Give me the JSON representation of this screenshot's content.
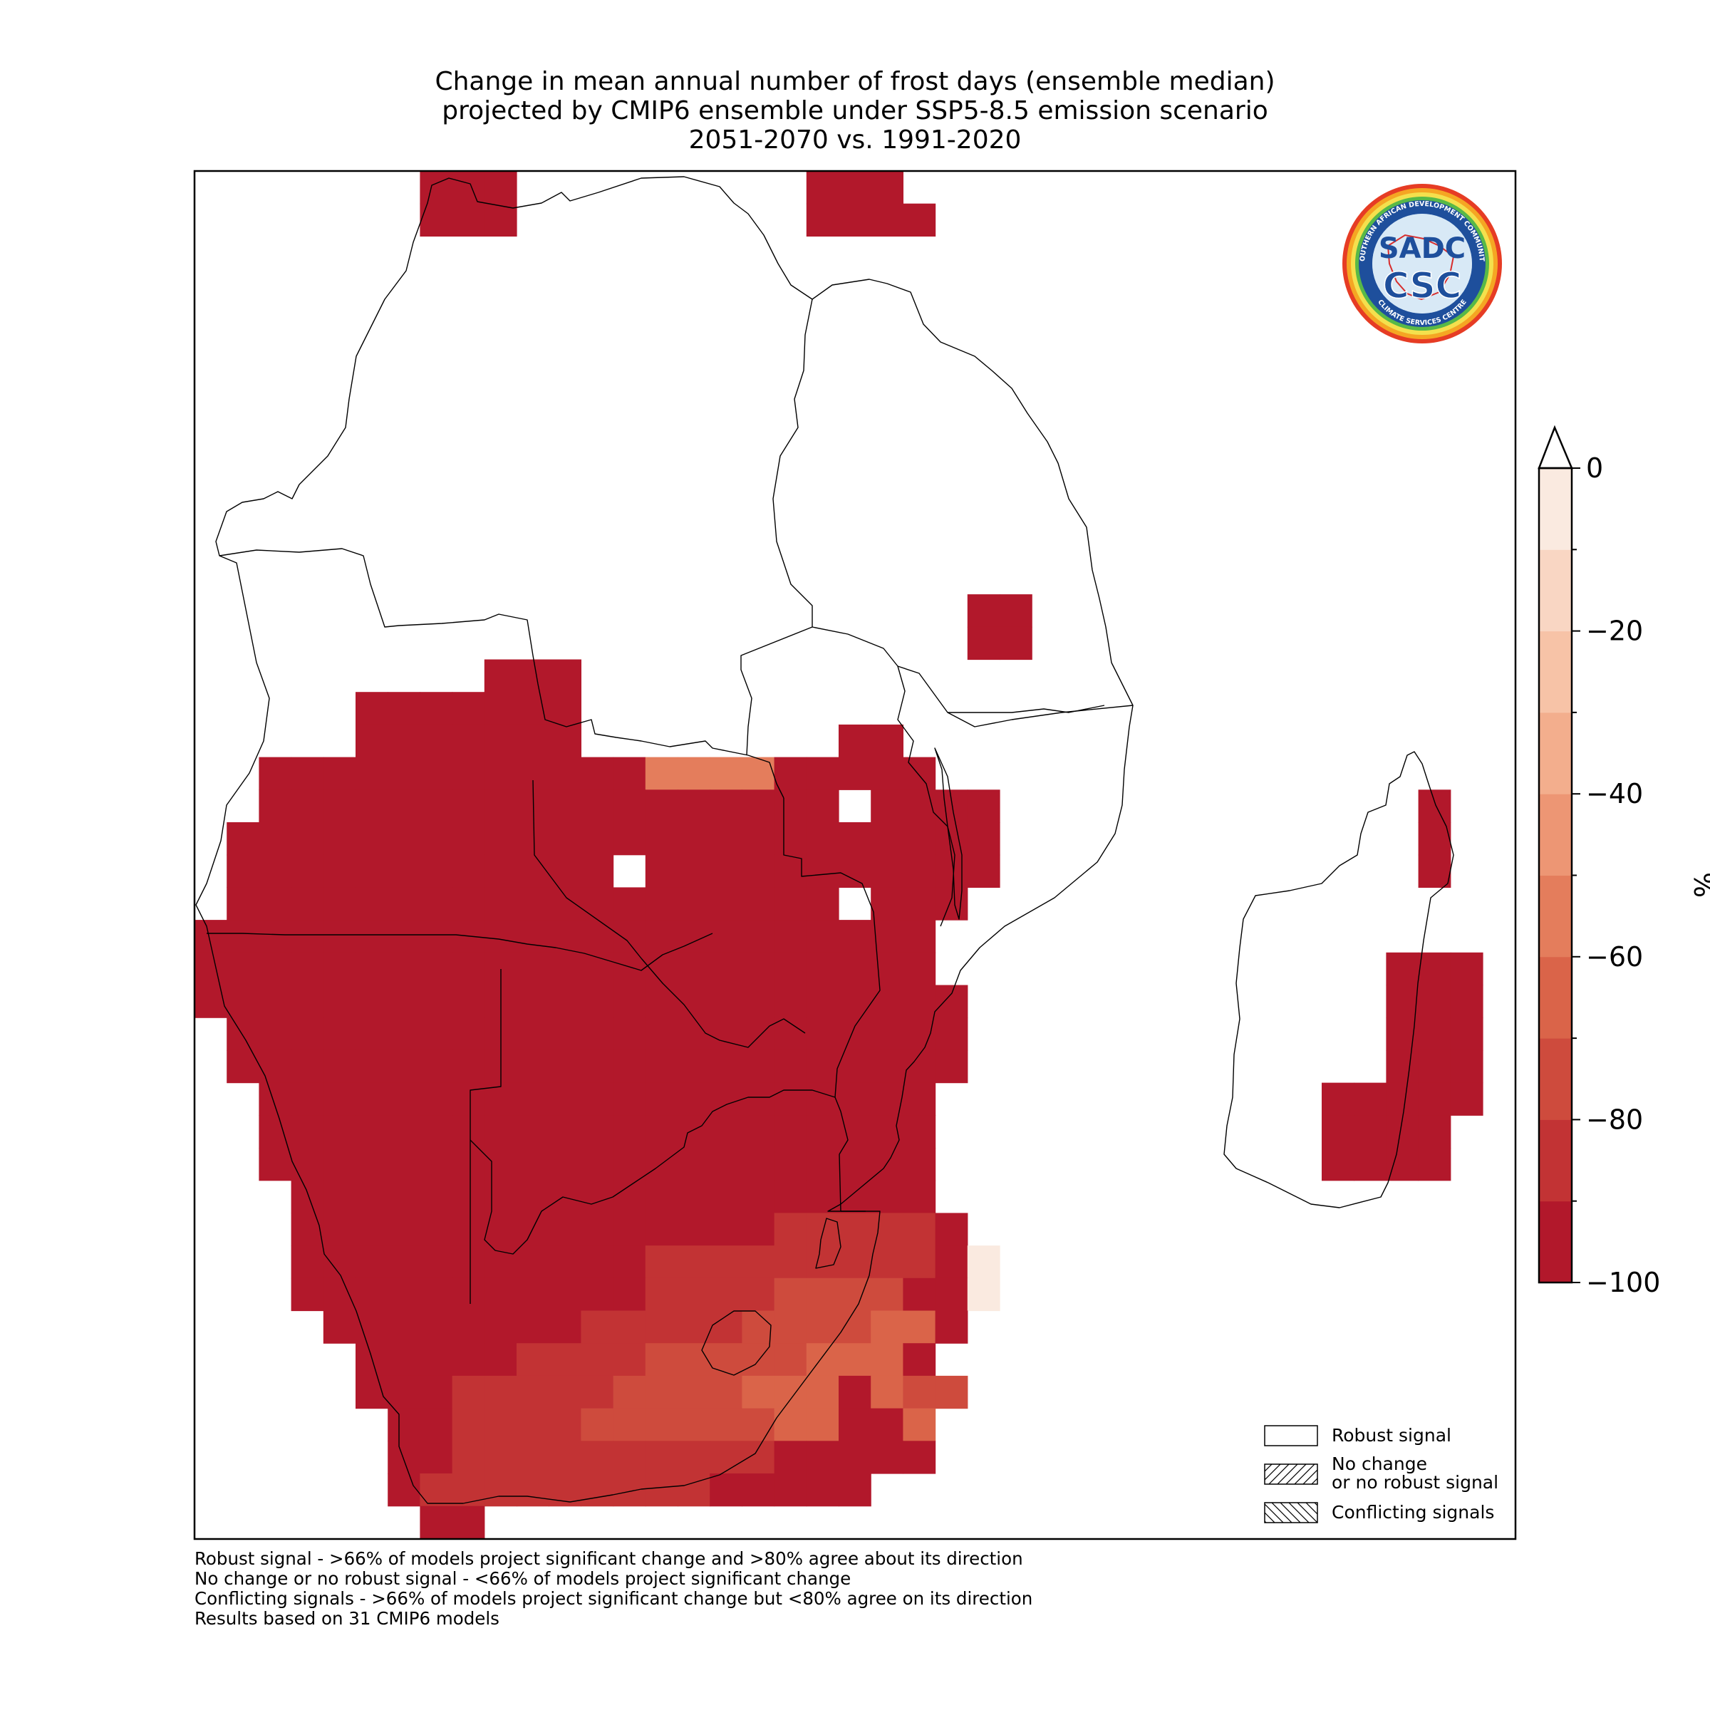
{
  "title": {
    "line1": "Change in mean annual number of frost days (ensemble median)",
    "line2": "projected by CMIP6 ensemble under SSP5-8.5 emission scenario",
    "line3": "2051-2070 vs. 1991-2020"
  },
  "logo": {
    "text_top": "SOUTHERN AFRICAN DEVELOPMENT COMMUNITY",
    "text_bottom": "CLIMATE SERVICES CENTRE",
    "emblem": "SADC",
    "abbr": "CSC"
  },
  "colorbar": {
    "unit": "%",
    "ticks": [
      "0",
      "−20",
      "−40",
      "−60",
      "−80",
      "−100"
    ],
    "tick_values": [
      0,
      -20,
      -40,
      -60,
      -80,
      -100
    ],
    "range": [
      -100,
      0
    ],
    "extend": "max",
    "colors": [
      "#b2182b",
      "#c23334",
      "#ce4b3d",
      "#da6449",
      "#e47d5c",
      "#ed9674",
      "#f3ae8d",
      "#f7c3a7",
      "#f9d6c3",
      "#faeae0"
    ]
  },
  "legend": {
    "position": "lower-right",
    "items": [
      {
        "label": "Robust signal",
        "hatch": "none"
      },
      {
        "label": "No change",
        "label2": "or no robust signal",
        "hatch": "diagonal-forward"
      },
      {
        "label": "Conflicting signals",
        "hatch": "diagonal-back"
      }
    ]
  },
  "footnotes": [
    "Robust signal - >66% of models project significant change and >80% agree about its direction",
    "No change or no robust signal - <66% of models project significant change",
    "Conflicting signals - >66% of models project significant change but <80% agree on its direction",
    "Results based on 31 CMIP6 models"
  ],
  "chart_data": {
    "type": "heatmap",
    "variable": "Change in mean annual number of frost days",
    "unit": "%",
    "value_range": [
      -100,
      0
    ],
    "grid": {
      "lon_start": 11.25,
      "lat_start": -2.5,
      "step": 1.25,
      "cols": 41,
      "rows": 42,
      "legend": {
        "A": -95,
        "B": -85,
        "C": -78,
        "D": -72,
        "E": -65,
        "F": -58,
        "G": -5
      },
      "rows_data": [
        "       AAA         AAA                   ",
        "       AAA         AAAA                  ",
        "                                         ",
        "                                         ",
        "                                         ",
        "                                         ",
        "                                         ",
        "                                         ",
        "                                         ",
        "                                         ",
        "                                         ",
        "                                         ",
        "                                         ",
        "                        AA               ",
        "                        AA               ",
        "         AAA                             ",
        "     AAAAAAA                             ",
        "     AAAAAAA        AA                   ",
        "  AAAAAAAAAAAAFFFFAAAAA                  ",
        "  AAAAAAAAAAAAAAAAAA AAAA             A  ",
        " AAAAAAAAAAAAAAAAAAAAAAAA             A  ",
        " AAAAAAAAAAAA AAAAAAAAAAA             A  ",
        " AAAAAAAAAAAAAAAAAAA AAA                 ",
        "AAAAAAAAAAAAAAAAAAAAAAA                  ",
        "AAAAAAAAAAAAAAAAAAAAAAA              AAA ",
        "AAAAAAAAAAAAAAAAAAAAAAAA             AAA ",
        " AAAAAAAAAAAAAAAAAAAAAAA             AAA ",
        " AAAAAAAAAAAAAAAAAAAAAAA             AAA ",
        "  AAAAAAAAAAAAAAAAAAAAA            AAAAA ",
        "  AAAAAAAAAAAAAAAAAAAAA            AAAA  ",
        "  AAAAAAAAAAAAAAAAAAAAA            AAAA  ",
        "   AAAAAAAAAAAAAAAAAAAA                  ",
        "   AAAAAAAAAAAAAAABBBBBA                 ",
        "   AAAAAAAAAAABBBBBBBBBAG                ",
        "   AAAAAAAAAAABBBBCCCCAAG                ",
        "    AAAAAAAABBBBBCCDDEEA                 ",
        "     AAAAABBBBCCCDDEEEA                  ",
        "     AAABBBBBCCCCEEEAEDD                 ",
        "      AABBBBCCCCCCEEAAE                  ",
        "      AABBBBBBBBBBAAAAA                  ",
        "      ABBBBBBBBBAAAAA                    ",
        "       AA                                "
      ]
    }
  }
}
